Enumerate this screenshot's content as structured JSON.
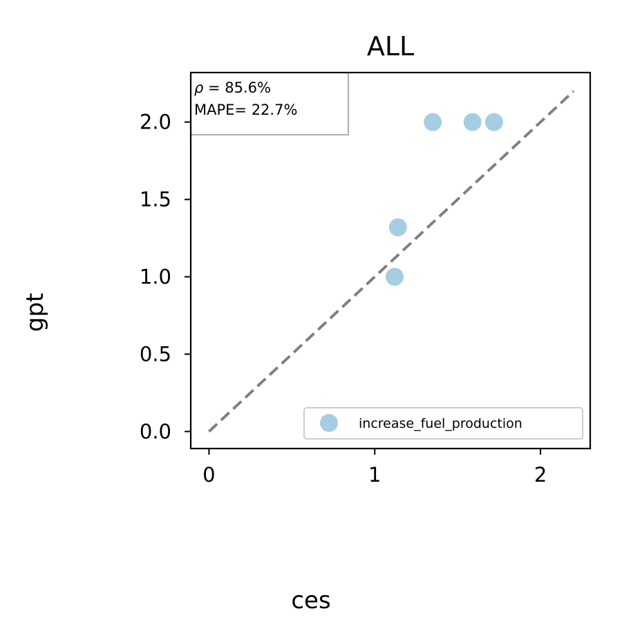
{
  "chart_data": {
    "type": "scatter",
    "title": "ALL",
    "xlabel": "ces",
    "ylabel": "gpt",
    "xlim": [
      -0.11,
      2.3
    ],
    "ylim": [
      -0.11,
      2.32
    ],
    "x_ticks": [
      0,
      1,
      2
    ],
    "x_tick_labels": [
      "0",
      "1",
      "2"
    ],
    "y_ticks": [
      0.0,
      0.5,
      1.0,
      1.5,
      2.0
    ],
    "y_tick_labels": [
      "0.0",
      "0.5",
      "1.0",
      "1.5",
      "2.0"
    ],
    "grid": false,
    "reference_line": {
      "style": "dashed",
      "color": "#808080",
      "from": [
        0,
        0
      ],
      "to": [
        2.2,
        2.2
      ]
    },
    "annotations": {
      "rho_symbol": "ρ",
      "rho_text": " = 85.6%",
      "mape_text": "MAPE= 22.7%"
    },
    "legend_position": "lower-right",
    "series": [
      {
        "name": "increase_fuel_production",
        "color": "#a6cee3",
        "points": [
          {
            "x": 1.12,
            "y": 1.0
          },
          {
            "x": 1.14,
            "y": 1.32
          },
          {
            "x": 1.35,
            "y": 2.0
          },
          {
            "x": 1.59,
            "y": 2.0
          },
          {
            "x": 1.72,
            "y": 2.0
          }
        ]
      }
    ]
  }
}
